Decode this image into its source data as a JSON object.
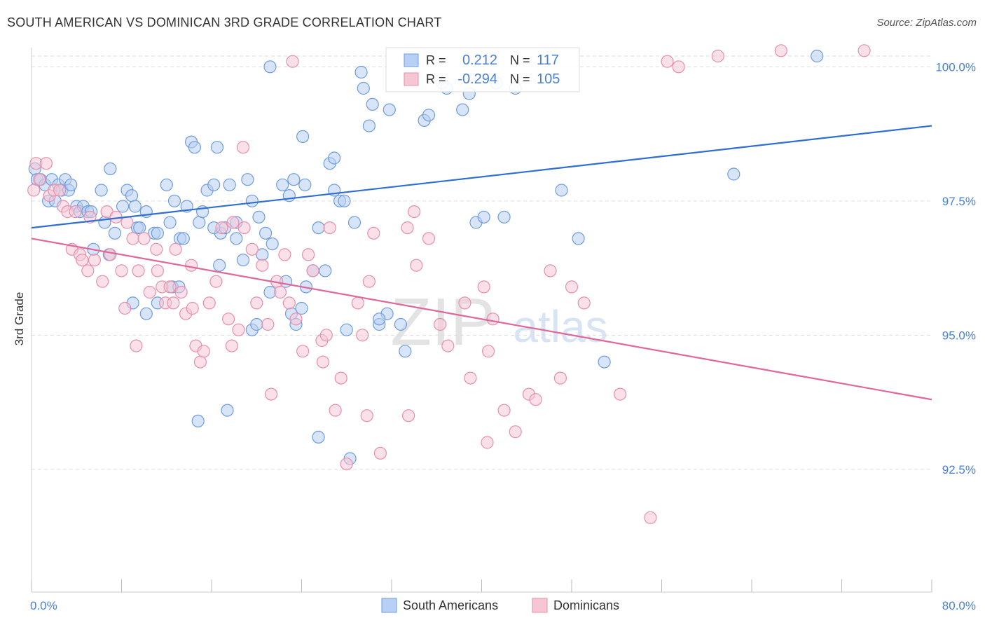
{
  "title": "SOUTH AMERICAN VS DOMINICAN 3RD GRADE CORRELATION CHART",
  "source": "Source: ZipAtlas.com",
  "watermark": {
    "zip": "ZIP",
    "atlas": "atlas"
  },
  "colors": {
    "blue_fill": "#b8d0f3",
    "blue_stroke": "#6d9ce0",
    "blue_line": "#2f6fd1",
    "pink_fill": "#f6c6d5",
    "pink_stroke": "#e88fab",
    "pink_line": "#e0679a",
    "axis_text": "#4a7fd6",
    "grid": "#dddddd"
  },
  "legend_stats": [
    {
      "r_label": "R =",
      "r_value": "0.212",
      "n_label": "N =",
      "n_value": "117",
      "color": "#b8d0f3",
      "stroke": "#6d9ce0"
    },
    {
      "r_label": "R =",
      "r_value": "-0.294",
      "n_label": "N =",
      "n_value": "105",
      "color": "#f6c6d5",
      "stroke": "#e88fab"
    }
  ],
  "legend_bottom": [
    {
      "label": "South Americans",
      "color": "#b8d0f3",
      "stroke": "#6d9ce0"
    },
    {
      "label": "Dominicans",
      "color": "#f6c6d5",
      "stroke": "#e88fab"
    }
  ],
  "chart_data": {
    "type": "scatter",
    "title": "SOUTH AMERICAN VS DOMINICAN 3RD GRADE CORRELATION CHART",
    "xlabel": "",
    "ylabel": "3rd Grade",
    "xlim": [
      0,
      80
    ],
    "ylim": [
      90.0,
      100.4
    ],
    "x_tick_labels": [
      "0.0%",
      "80.0%"
    ],
    "y_ticks": [
      92.5,
      95.0,
      97.5,
      100.0
    ],
    "y_tick_labels": [
      "92.5%",
      "95.0%",
      "97.5%",
      "100.0%"
    ],
    "grid": "horizontal dashed",
    "legend_placement": "top-center and bottom",
    "series": [
      {
        "name": "South Americans",
        "color": "#b8d0f3",
        "trend": {
          "x": [
            0,
            80
          ],
          "y": [
            97.0,
            98.9
          ]
        },
        "points": [
          [
            0.3,
            98.1
          ],
          [
            0.5,
            97.9
          ],
          [
            0.8,
            97.9
          ],
          [
            1.2,
            97.8
          ],
          [
            1.5,
            97.5
          ],
          [
            1.8,
            97.9
          ],
          [
            2.1,
            97.5
          ],
          [
            2.4,
            97.8
          ],
          [
            2.7,
            97.7
          ],
          [
            3.0,
            97.9
          ],
          [
            3.3,
            97.7
          ],
          [
            3.5,
            97.8
          ],
          [
            4.0,
            97.4
          ],
          [
            4.3,
            97.3
          ],
          [
            4.6,
            97.4
          ],
          [
            5.0,
            97.3
          ],
          [
            5.3,
            97.3
          ],
          [
            5.5,
            96.6
          ],
          [
            6.2,
            97.7
          ],
          [
            6.5,
            97.1
          ],
          [
            6.9,
            96.5
          ],
          [
            7.0,
            98.1
          ],
          [
            7.4,
            96.9
          ],
          [
            8.1,
            97.4
          ],
          [
            8.5,
            97.7
          ],
          [
            8.9,
            97.6
          ],
          [
            9.2,
            97.4
          ],
          [
            9.4,
            97.0
          ],
          [
            9.6,
            97.0
          ],
          [
            10.2,
            97.3
          ],
          [
            10.9,
            96.9
          ],
          [
            11.2,
            96.9
          ],
          [
            12.0,
            97.8
          ],
          [
            12.3,
            97.1
          ],
          [
            12.7,
            97.5
          ],
          [
            13.2,
            96.8
          ],
          [
            13.5,
            96.8
          ],
          [
            13.8,
            97.4
          ],
          [
            14.2,
            98.6
          ],
          [
            14.5,
            98.5
          ],
          [
            14.9,
            97.1
          ],
          [
            15.2,
            97.3
          ],
          [
            15.6,
            97.7
          ],
          [
            16.2,
            97.8
          ],
          [
            16.5,
            98.5
          ],
          [
            16.8,
            96.9
          ],
          [
            17.2,
            97.0
          ],
          [
            17.6,
            97.8
          ],
          [
            18.2,
            97.1
          ],
          [
            18.8,
            96.4
          ],
          [
            19.2,
            97.9
          ],
          [
            19.6,
            97.5
          ],
          [
            20.2,
            97.2
          ],
          [
            20.8,
            96.9
          ],
          [
            21.4,
            96.7
          ],
          [
            22.3,
            97.8
          ],
          [
            22.9,
            97.6
          ],
          [
            23.3,
            97.9
          ],
          [
            24.1,
            98.7
          ],
          [
            24.3,
            97.8
          ],
          [
            25.0,
            96.2
          ],
          [
            25.5,
            97.0
          ],
          [
            26.1,
            96.2
          ],
          [
            26.5,
            98.2
          ],
          [
            26.9,
            98.3
          ],
          [
            27.4,
            97.5
          ],
          [
            27.8,
            97.5
          ],
          [
            28.0,
            95.1
          ],
          [
            28.7,
            97.1
          ],
          [
            29.3,
            99.9
          ],
          [
            29.5,
            99.6
          ],
          [
            30.0,
            98.9
          ],
          [
            30.3,
            99.3
          ],
          [
            30.9,
            95.2
          ],
          [
            31.6,
            95.4
          ],
          [
            32.8,
            95.2
          ],
          [
            33.2,
            94.7
          ],
          [
            34.9,
            99.0
          ],
          [
            35.3,
            99.1
          ],
          [
            36.5,
            99.7
          ],
          [
            36.9,
            99.6
          ],
          [
            38.3,
            99.2
          ],
          [
            38.9,
            99.5
          ],
          [
            39.5,
            97.1
          ],
          [
            40.2,
            97.2
          ],
          [
            41.3,
            99.7
          ],
          [
            42.0,
            97.2
          ],
          [
            43.0,
            99.6
          ],
          [
            47.1,
            97.7
          ],
          [
            48.6,
            96.8
          ],
          [
            50.9,
            94.5
          ],
          [
            62.4,
            98.0
          ],
          [
            69.8,
            100.2
          ],
          [
            14.8,
            93.4
          ],
          [
            18.2,
            96.8
          ],
          [
            17.4,
            93.6
          ],
          [
            20.5,
            96.5
          ],
          [
            21.2,
            95.8
          ],
          [
            23.1,
            95.4
          ],
          [
            23.5,
            95.2
          ],
          [
            24.0,
            95.5
          ],
          [
            24.4,
            95.9
          ],
          [
            25.5,
            93.1
          ],
          [
            28.3,
            92.7
          ],
          [
            30.9,
            95.3
          ],
          [
            31.8,
            99.2
          ],
          [
            21.2,
            100.0
          ],
          [
            9.0,
            95.6
          ],
          [
            10.2,
            95.4
          ],
          [
            11.2,
            95.6
          ],
          [
            12.5,
            95.9
          ],
          [
            13.1,
            95.9
          ],
          [
            16.2,
            97.0
          ],
          [
            16.7,
            96.3
          ],
          [
            19.6,
            95.1
          ],
          [
            20.0,
            95.2
          ],
          [
            22.6,
            96.0
          ],
          [
            26.9,
            97.7
          ]
        ]
      },
      {
        "name": "Dominicans",
        "color": "#f6c6d5",
        "trend": {
          "x": [
            0,
            80
          ],
          "y": [
            96.8,
            93.8
          ]
        },
        "points": [
          [
            0.2,
            97.7
          ],
          [
            0.4,
            98.2
          ],
          [
            0.7,
            97.9
          ],
          [
            1.3,
            98.2
          ],
          [
            1.6,
            97.6
          ],
          [
            2.0,
            97.7
          ],
          [
            2.5,
            97.7
          ],
          [
            2.8,
            97.4
          ],
          [
            3.2,
            97.3
          ],
          [
            3.6,
            96.6
          ],
          [
            3.9,
            97.3
          ],
          [
            4.3,
            96.5
          ],
          [
            4.5,
            96.4
          ],
          [
            5.0,
            96.2
          ],
          [
            5.2,
            97.2
          ],
          [
            5.6,
            96.4
          ],
          [
            6.3,
            96.0
          ],
          [
            6.7,
            97.3
          ],
          [
            7.0,
            96.5
          ],
          [
            7.5,
            97.2
          ],
          [
            8.0,
            96.2
          ],
          [
            8.5,
            97.1
          ],
          [
            9.0,
            96.8
          ],
          [
            9.5,
            96.2
          ],
          [
            10.0,
            96.8
          ],
          [
            10.5,
            95.8
          ],
          [
            11.1,
            96.6
          ],
          [
            11.6,
            95.9
          ],
          [
            11.9,
            95.6
          ],
          [
            12.3,
            95.9
          ],
          [
            12.6,
            95.6
          ],
          [
            13.3,
            95.8
          ],
          [
            13.7,
            95.4
          ],
          [
            14.2,
            96.3
          ],
          [
            14.6,
            94.8
          ],
          [
            15.0,
            94.5
          ],
          [
            15.3,
            94.7
          ],
          [
            15.8,
            95.6
          ],
          [
            16.4,
            96.0
          ],
          [
            16.9,
            97.0
          ],
          [
            17.5,
            95.3
          ],
          [
            17.8,
            94.8
          ],
          [
            18.4,
            95.1
          ],
          [
            18.9,
            97.0
          ],
          [
            19.6,
            96.6
          ],
          [
            20.0,
            95.6
          ],
          [
            20.5,
            96.3
          ],
          [
            21.0,
            95.2
          ],
          [
            21.3,
            93.9
          ],
          [
            21.8,
            96.0
          ],
          [
            22.1,
            95.8
          ],
          [
            22.5,
            96.5
          ],
          [
            22.9,
            95.6
          ],
          [
            23.5,
            95.3
          ],
          [
            24.1,
            94.7
          ],
          [
            24.6,
            96.5
          ],
          [
            25.0,
            96.2
          ],
          [
            25.8,
            94.9
          ],
          [
            26.2,
            95.0
          ],
          [
            26.5,
            97.0
          ],
          [
            27.0,
            93.6
          ],
          [
            28.0,
            92.6
          ],
          [
            29.0,
            95.6
          ],
          [
            29.4,
            95.0
          ],
          [
            30.0,
            96.0
          ],
          [
            30.4,
            96.9
          ],
          [
            31.0,
            92.8
          ],
          [
            33.4,
            97.0
          ],
          [
            34.0,
            97.3
          ],
          [
            34.2,
            96.3
          ],
          [
            35.3,
            96.8
          ],
          [
            36.3,
            95.2
          ],
          [
            37.0,
            94.8
          ],
          [
            38.5,
            95.6
          ],
          [
            39.0,
            94.2
          ],
          [
            40.2,
            95.9
          ],
          [
            40.6,
            94.7
          ],
          [
            41.0,
            95.3
          ],
          [
            42.0,
            93.6
          ],
          [
            43.0,
            93.2
          ],
          [
            44.2,
            93.9
          ],
          [
            44.8,
            93.8
          ],
          [
            46.1,
            96.2
          ],
          [
            47.0,
            94.2
          ],
          [
            48.0,
            95.9
          ],
          [
            49.1,
            95.6
          ],
          [
            52.3,
            93.9
          ],
          [
            55.0,
            91.6
          ],
          [
            56.5,
            100.1
          ],
          [
            57.5,
            100.0
          ],
          [
            61.0,
            100.2
          ],
          [
            66.6,
            100.3
          ],
          [
            74.0,
            100.3
          ],
          [
            11.2,
            96.2
          ],
          [
            12.8,
            96.6
          ],
          [
            14.3,
            95.5
          ],
          [
            9.3,
            94.8
          ],
          [
            8.3,
            95.5
          ],
          [
            17.9,
            97.1
          ],
          [
            18.8,
            98.5
          ],
          [
            23.2,
            100.1
          ],
          [
            25.9,
            94.5
          ],
          [
            27.5,
            94.2
          ],
          [
            29.8,
            93.5
          ],
          [
            33.5,
            93.5
          ],
          [
            40.5,
            93.0
          ]
        ]
      }
    ]
  }
}
